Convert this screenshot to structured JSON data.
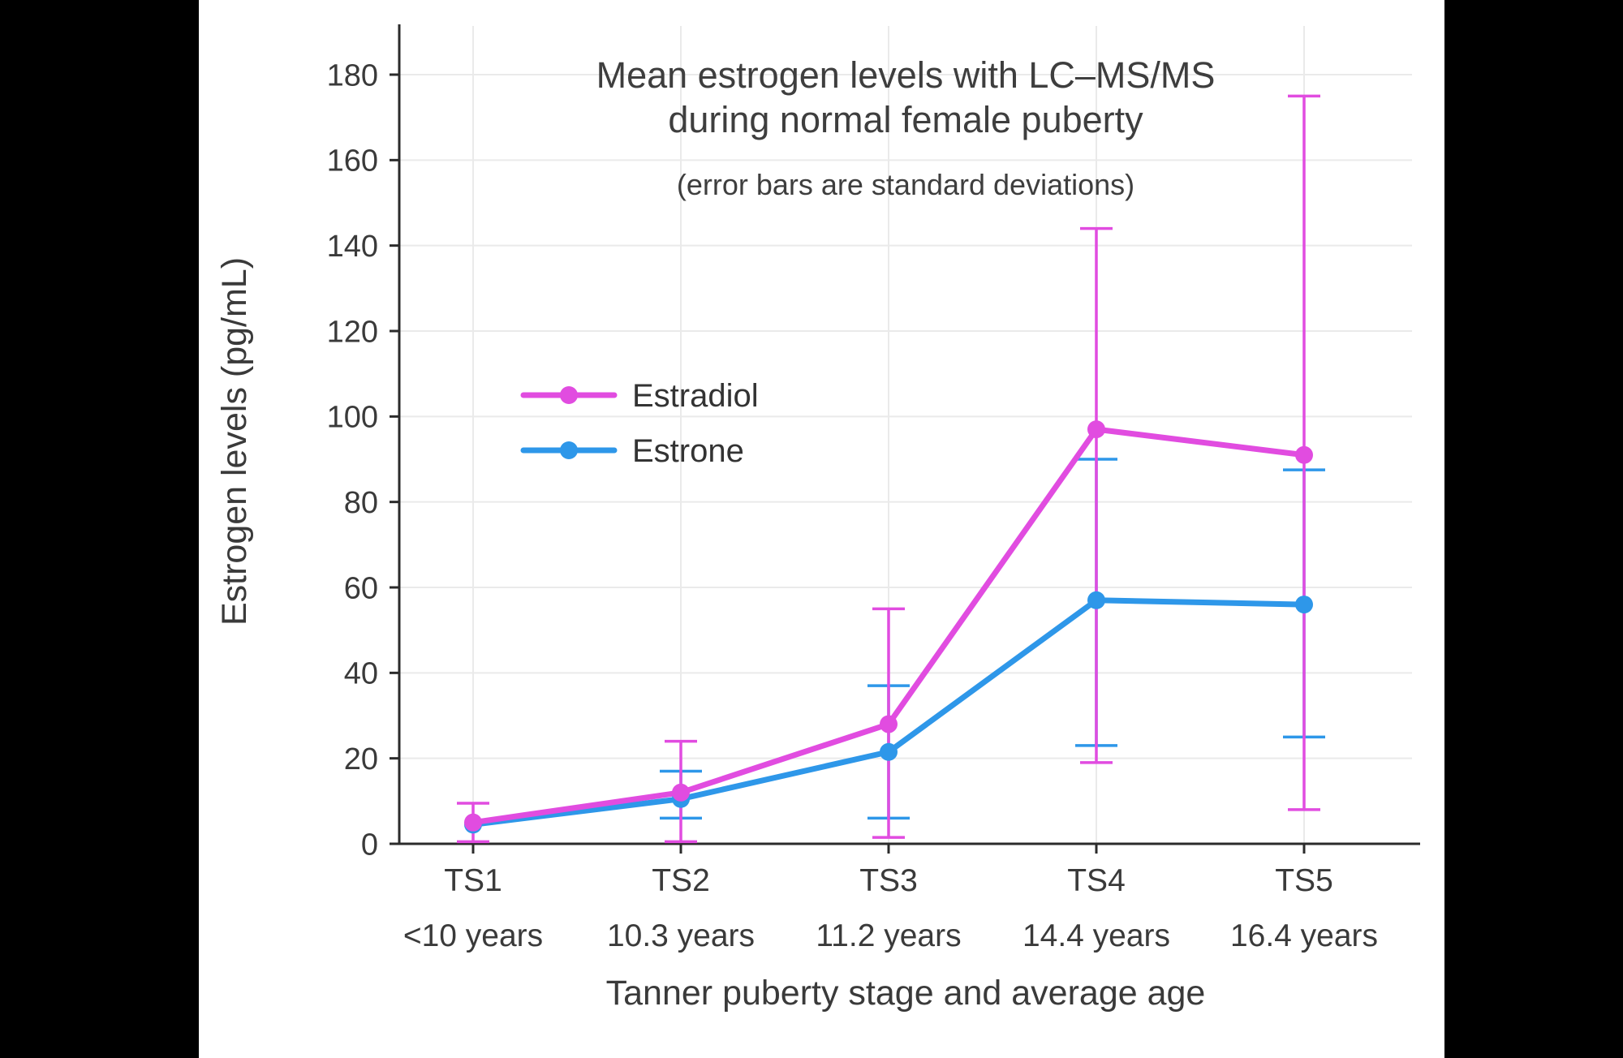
{
  "page": {
    "background": "#000000",
    "panel_background": "#ffffff"
  },
  "chart_data": {
    "type": "line",
    "title": "Mean estrogen levels with LC–MS/MS during normal female puberty",
    "title_lines": [
      "Mean estrogen levels with LC–MS/MS",
      "during normal female puberty"
    ],
    "subtitle": "(error bars are standard deviations)",
    "xlabel": "Tanner puberty stage and average age",
    "ylabel": "Estrogen levels (pg/mL)",
    "ylim": [
      0,
      190
    ],
    "yticks": [
      0,
      20,
      40,
      60,
      80,
      100,
      120,
      140,
      160,
      180
    ],
    "categories": [
      "TS1",
      "TS2",
      "TS3",
      "TS4",
      "TS5"
    ],
    "category_sublabels": [
      "<10 years",
      "10.3 years",
      "11.2 years",
      "14.4 years",
      "16.4 years"
    ],
    "grid": true,
    "legend_position": "upper-left-inside",
    "colors": {
      "grid": "#eaeaea",
      "axis": "#2b2b2b",
      "text": "#3a3a3a"
    },
    "series": [
      {
        "name": "Estradiol",
        "color": "#E14CE0",
        "values": [
          5,
          12,
          28,
          97,
          91
        ],
        "err_bottom": [
          0.5,
          0.5,
          1.5,
          19,
          8
        ],
        "err_top": [
          9.5,
          24,
          55,
          144,
          175
        ]
      },
      {
        "name": "Estrone",
        "color": "#2E97E9",
        "values": [
          4.5,
          10.5,
          21.5,
          57,
          56
        ],
        "err_bottom": [
          null,
          6,
          6,
          23,
          25
        ],
        "err_top": [
          null,
          17,
          37,
          90,
          87.5
        ]
      }
    ]
  }
}
